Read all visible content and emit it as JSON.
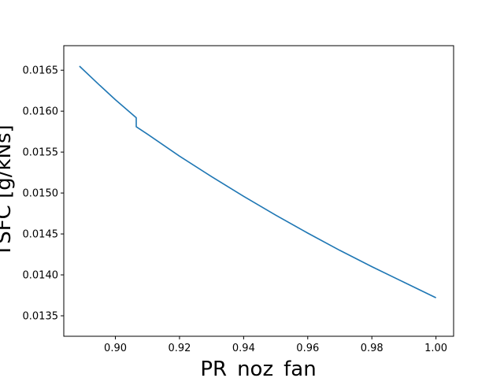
{
  "chart_data": {
    "type": "line",
    "title": "",
    "xlabel": "PR_noz_fan",
    "ylabel": "TSFC [g/kNs]",
    "xlim": [
      0.8839,
      1.0055
    ],
    "ylim": [
      0.01325,
      0.0168
    ],
    "xticks": [
      0.9,
      0.92,
      0.94,
      0.96,
      0.98,
      1.0
    ],
    "xtick_labels": [
      "0.90",
      "0.92",
      "0.94",
      "0.96",
      "0.98",
      "1.00"
    ],
    "yticks": [
      0.0135,
      0.014,
      0.0145,
      0.015,
      0.0155,
      0.016,
      0.0165
    ],
    "ytick_labels": [
      "0.0135",
      "0.0140",
      "0.0145",
      "0.0150",
      "0.0155",
      "0.0160",
      "0.0165"
    ],
    "grid": false,
    "legend": "none",
    "colors": {
      "line": "#1f77b4",
      "axes": "#000000",
      "background": "#ffffff"
    },
    "series": [
      {
        "x": [
          0.8888,
          0.895,
          0.9,
          0.9065,
          0.9065,
          0.91,
          0.92,
          0.93,
          0.94,
          0.95,
          0.96,
          0.97,
          0.98,
          0.99,
          1.0
        ],
        "y": [
          0.01655,
          0.01632,
          0.01614,
          0.01592,
          0.01581,
          0.01572,
          0.01545,
          0.0152,
          0.01496,
          0.01473,
          0.01451,
          0.0143,
          0.0141,
          0.01391,
          0.01372
        ]
      }
    ]
  }
}
